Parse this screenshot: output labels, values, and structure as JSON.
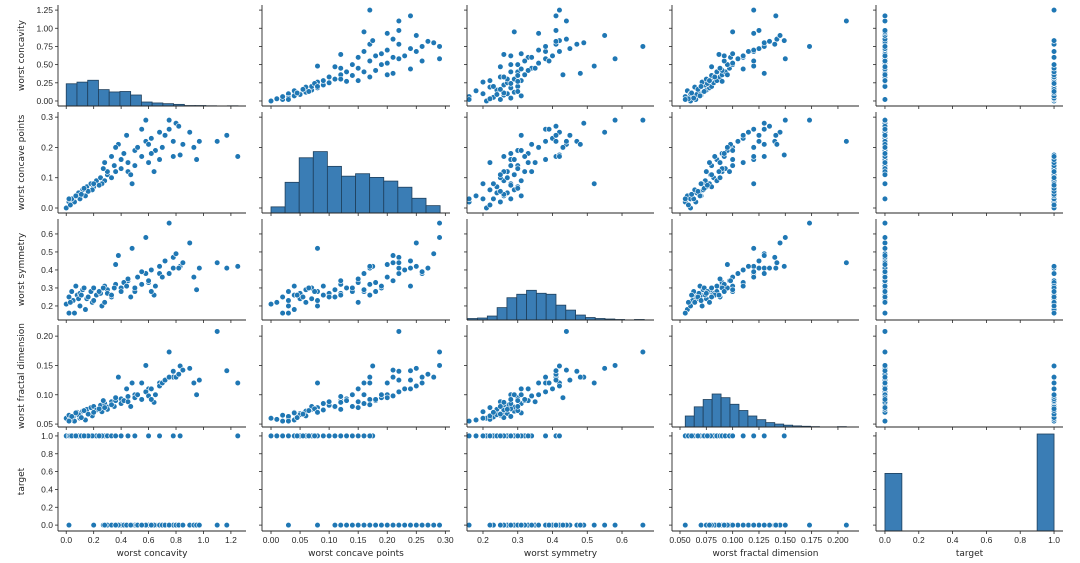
{
  "chart_data": {
    "type": "scatter",
    "subtype": "pairplot",
    "grid": false,
    "variables": [
      "worst concavity",
      "worst concave points",
      "worst symmetry",
      "worst fractal dimension",
      "target"
    ],
    "colors": {
      "marker": "#1f77b4",
      "marker_edge": "#ffffff",
      "bar": "#3a7db5",
      "bar_edge": "#1e3f5c",
      "axis": "#262626"
    },
    "axes": [
      {
        "label": "worst concavity",
        "range": [
          -0.06,
          1.31
        ],
        "ticks": [
          0.0,
          0.2,
          0.4,
          0.6,
          0.8,
          1.0,
          1.2
        ],
        "tick_labels": [
          "0.0",
          "0.2",
          "0.4",
          "0.6",
          "0.8",
          "1.0",
          "1.2"
        ],
        "y_ticks": [
          0.0,
          0.25,
          0.5,
          0.75,
          1.0,
          1.25
        ],
        "y_tick_labels": [
          "0.00",
          "0.25",
          "0.50",
          "0.75",
          "1.00",
          "1.25"
        ],
        "y_range": [
          -0.069,
          1.32
        ]
      },
      {
        "label": "worst concave points",
        "range": [
          -0.0155,
          0.308
        ],
        "ticks": [
          0.0,
          0.05,
          0.1,
          0.15,
          0.2,
          0.25,
          0.3
        ],
        "tick_labels": [
          "0.00",
          "0.05",
          "0.10",
          "0.15",
          "0.20",
          "0.25",
          "0.30"
        ],
        "y_ticks": [
          0.0,
          0.1,
          0.2,
          0.3
        ],
        "y_tick_labels": [
          "0.0",
          "0.1",
          "0.2",
          "0.3"
        ],
        "y_range": [
          -0.0165,
          0.317
        ]
      },
      {
        "label": "worst symmetry",
        "range": [
          0.154,
          0.692
        ],
        "ticks": [
          0.2,
          0.3,
          0.4,
          0.5,
          0.6
        ],
        "tick_labels": [
          "0.2",
          "0.3",
          "0.4",
          "0.5",
          "0.6"
        ],
        "y_ticks": [
          0.2,
          0.3,
          0.4,
          0.5,
          0.6
        ],
        "y_tick_labels": [
          "0.2",
          "0.3",
          "0.4",
          "0.5",
          "0.6"
        ],
        "y_range": [
          0.122,
          0.683
        ]
      },
      {
        "label": "worst fractal dimension",
        "range": [
          0.0424,
          0.22
        ],
        "ticks": [
          0.05,
          0.075,
          0.1,
          0.125,
          0.15,
          0.175,
          0.2
        ],
        "tick_labels": [
          "0.050",
          "0.075",
          "0.100",
          "0.125",
          "0.150",
          "0.175",
          "0.200"
        ],
        "y_ticks": [
          0.05,
          0.1,
          0.15,
          0.2
        ],
        "y_tick_labels": [
          "0.05",
          "0.10",
          "0.15",
          "0.20"
        ],
        "y_range": [
          0.045,
          0.219
        ]
      },
      {
        "label": "target",
        "range": [
          -0.053,
          1.053
        ],
        "ticks": [
          0.0,
          0.2,
          0.4,
          0.6,
          0.8,
          1.0
        ],
        "tick_labels": [
          "0.0",
          "0.2",
          "0.4",
          "0.6",
          "0.8",
          "1.0"
        ],
        "y_ticks": [
          0.0,
          0.2,
          0.4,
          0.6,
          0.8,
          1.0
        ],
        "y_tick_labels": [
          "0.0",
          "0.2",
          "0.4",
          "0.6",
          "0.8",
          "1.0"
        ],
        "y_range": [
          -0.066,
          1.044
        ]
      }
    ],
    "histograms": [
      {
        "range": [
          0.0,
          1.252
        ],
        "counts": [
          95,
          102,
          110,
          70,
          60,
          62,
          47,
          17,
          13,
          10,
          7,
          2,
          2,
          1,
          0,
          1
        ]
      },
      {
        "range": [
          0.0,
          0.291
        ],
        "counts": [
          5,
          25,
          45,
          50,
          38,
          30,
          32,
          29,
          26,
          21,
          12,
          6
        ]
      },
      {
        "range": [
          0.156,
          0.664
        ],
        "counts": [
          3,
          4,
          8,
          25,
          45,
          52,
          60,
          54,
          52,
          30,
          20,
          10,
          5,
          3,
          2,
          1,
          0,
          1
        ]
      },
      {
        "range": [
          0.055,
          0.208
        ],
        "counts": [
          30,
          55,
          75,
          90,
          80,
          62,
          45,
          30,
          20,
          12,
          8,
          5,
          3,
          2,
          1,
          0,
          0,
          1
        ]
      },
      {
        "range": [
          0.0,
          1.0
        ],
        "counts": [
          212,
          0,
          0,
          0,
          0,
          0,
          0,
          0,
          0,
          357
        ]
      }
    ],
    "samples": [
      [
        0.0,
        0.0,
        0.21,
        0.06,
        1
      ],
      [
        0.02,
        0.02,
        0.25,
        0.065,
        1
      ],
      [
        0.05,
        0.03,
        0.23,
        0.062,
        1
      ],
      [
        0.08,
        0.04,
        0.26,
        0.07,
        1
      ],
      [
        0.1,
        0.05,
        0.27,
        0.068,
        1
      ],
      [
        0.12,
        0.06,
        0.29,
        0.072,
        1
      ],
      [
        0.15,
        0.07,
        0.24,
        0.075,
        1
      ],
      [
        0.18,
        0.08,
        0.28,
        0.078,
        1
      ],
      [
        0.2,
        0.07,
        0.3,
        0.08,
        1
      ],
      [
        0.22,
        0.09,
        0.26,
        0.074,
        1
      ],
      [
        0.25,
        0.1,
        0.27,
        0.082,
        1
      ],
      [
        0.28,
        0.09,
        0.31,
        0.085,
        1
      ],
      [
        0.3,
        0.11,
        0.29,
        0.079,
        1
      ],
      [
        0.33,
        0.1,
        0.25,
        0.088,
        1
      ],
      [
        0.36,
        0.12,
        0.32,
        0.09,
        1
      ],
      [
        0.4,
        0.13,
        0.3,
        0.093,
        1
      ],
      [
        0.45,
        0.12,
        0.34,
        0.097,
        1
      ],
      [
        0.5,
        0.14,
        0.28,
        0.1,
        1
      ],
      [
        0.6,
        0.15,
        0.33,
        0.11,
        1
      ],
      [
        0.68,
        0.16,
        0.38,
        0.12,
        1
      ],
      [
        0.78,
        0.17,
        0.41,
        0.13,
        1
      ],
      [
        0.83,
        0.175,
        0.42,
        0.149,
        1
      ],
      [
        1.25,
        0.17,
        0.42,
        0.12,
        1
      ],
      [
        0.14,
        0.04,
        0.18,
        0.057,
        1
      ],
      [
        0.06,
        0.02,
        0.16,
        0.055,
        1
      ],
      [
        0.1,
        0.03,
        0.2,
        0.06,
        1
      ],
      [
        0.03,
        0.01,
        0.22,
        0.058,
        1
      ],
      [
        0.09,
        0.05,
        0.24,
        0.066,
        1
      ],
      [
        0.19,
        0.06,
        0.22,
        0.064,
        1
      ],
      [
        0.26,
        0.08,
        0.2,
        0.071,
        1
      ],
      [
        0.04,
        0.03,
        0.28,
        0.063,
        1
      ],
      [
        0.07,
        0.04,
        0.31,
        0.069,
        1
      ],
      [
        0.11,
        0.045,
        0.26,
        0.061,
        1
      ],
      [
        0.16,
        0.055,
        0.25,
        0.067,
        1
      ],
      [
        0.13,
        0.065,
        0.3,
        0.073,
        1
      ],
      [
        0.24,
        0.075,
        0.28,
        0.076,
        1
      ],
      [
        0.02,
        0.03,
        0.16,
        0.055,
        0
      ],
      [
        0.2,
        0.08,
        0.23,
        0.07,
        0
      ],
      [
        0.3,
        0.12,
        0.27,
        0.075,
        0
      ],
      [
        0.35,
        0.14,
        0.3,
        0.08,
        0
      ],
      [
        0.4,
        0.16,
        0.28,
        0.085,
        0
      ],
      [
        0.42,
        0.18,
        0.33,
        0.09,
        0
      ],
      [
        0.45,
        0.15,
        0.35,
        0.088,
        0
      ],
      [
        0.5,
        0.19,
        0.3,
        0.095,
        0
      ],
      [
        0.52,
        0.2,
        0.36,
        0.1,
        0
      ],
      [
        0.55,
        0.17,
        0.32,
        0.092,
        0
      ],
      [
        0.58,
        0.22,
        0.38,
        0.105,
        0
      ],
      [
        0.6,
        0.21,
        0.34,
        0.098,
        0
      ],
      [
        0.62,
        0.23,
        0.4,
        0.11,
        0
      ],
      [
        0.65,
        0.19,
        0.31,
        0.1,
        0
      ],
      [
        0.68,
        0.25,
        0.42,
        0.115,
        0
      ],
      [
        0.7,
        0.2,
        0.36,
        0.12,
        0
      ],
      [
        0.72,
        0.24,
        0.45,
        0.125,
        0
      ],
      [
        0.75,
        0.26,
        0.38,
        0.13,
        0
      ],
      [
        0.78,
        0.22,
        0.47,
        0.14,
        0
      ],
      [
        0.8,
        0.28,
        0.49,
        0.13,
        0
      ],
      [
        0.82,
        0.27,
        0.41,
        0.135,
        0
      ],
      [
        0.85,
        0.21,
        0.44,
        0.142,
        0
      ],
      [
        0.9,
        0.25,
        0.55,
        0.145,
        0
      ],
      [
        0.93,
        0.2,
        0.36,
        0.12,
        0
      ],
      [
        0.95,
        0.16,
        0.29,
        0.1,
        0
      ],
      [
        0.97,
        0.22,
        0.41,
        0.125,
        0
      ],
      [
        1.1,
        0.22,
        0.44,
        0.208,
        0
      ],
      [
        1.17,
        0.24,
        0.41,
        0.141,
        0
      ],
      [
        0.75,
        0.29,
        0.66,
        0.173,
        0
      ],
      [
        0.58,
        0.29,
        0.58,
        0.15,
        0
      ],
      [
        0.38,
        0.21,
        0.48,
        0.13,
        0
      ],
      [
        0.33,
        0.17,
        0.26,
        0.083,
        0
      ],
      [
        0.27,
        0.13,
        0.3,
        0.09,
        0
      ],
      [
        0.48,
        0.08,
        0.52,
        0.12,
        0
      ],
      [
        0.64,
        0.12,
        0.26,
        0.087,
        0
      ],
      [
        0.44,
        0.24,
        0.31,
        0.11,
        0
      ],
      [
        0.36,
        0.2,
        0.43,
        0.095,
        0
      ],
      [
        0.55,
        0.26,
        0.39,
        0.12,
        0
      ],
      [
        0.47,
        0.11,
        0.25,
        0.08,
        0
      ],
      [
        0.62,
        0.18,
        0.28,
        0.092,
        0
      ],
      [
        0.28,
        0.15,
        0.22,
        0.078,
        0
      ]
    ]
  }
}
